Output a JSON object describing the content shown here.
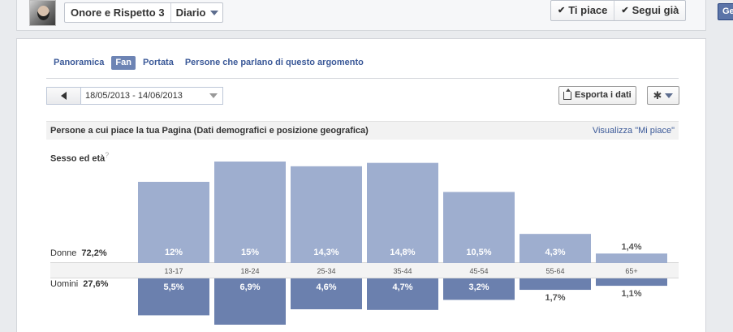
{
  "header": {
    "page_name": "Onore e Rispetto 3",
    "timeline_label": "Diario",
    "like_label": "Ti piace",
    "follow_label": "Segui già",
    "edge_button_label": "Ge"
  },
  "tabs": [
    {
      "label": "Panoramica",
      "active": false
    },
    {
      "label": "Fan",
      "active": true
    },
    {
      "label": "Portata",
      "active": false
    },
    {
      "label": "Persone che parlano di questo argomento",
      "active": false
    }
  ],
  "toolbar": {
    "date_range": "18/05/2013 - 14/06/2013",
    "export_label": "Esporta i dati",
    "prev_icon": "triangle-left-icon",
    "settings_icon": "gear-icon"
  },
  "section": {
    "title": "Persone a cui piace la tua Pagina (Dati demografici e posizione geografica)",
    "link": "Visualizza \"Mi piace\"",
    "subtitle": "Sesso ed età",
    "help": "?"
  },
  "chart_data": {
    "type": "bar",
    "categories": [
      "13-17",
      "18-24",
      "25-34",
      "35-44",
      "45-54",
      "55-64",
      "65+"
    ],
    "series": [
      {
        "name": "Donne",
        "total_label": "72,2%",
        "values": [
          12,
          15,
          14.3,
          14.8,
          10.5,
          4.3,
          1.4
        ],
        "labels": [
          "12%",
          "15%",
          "14,3%",
          "14,8%",
          "10,5%",
          "4,3%",
          "1,4%"
        ],
        "color": "#9eaecf"
      },
      {
        "name": "Uomini",
        "total_label": "27,6%",
        "values": [
          5.5,
          6.9,
          4.6,
          4.7,
          3.2,
          1.7,
          1.1
        ],
        "labels": [
          "5,5%",
          "6,9%",
          "4,6%",
          "4,7%",
          "3,2%",
          "1,7%",
          "1,1%"
        ],
        "color": "#6b80ae"
      }
    ]
  }
}
